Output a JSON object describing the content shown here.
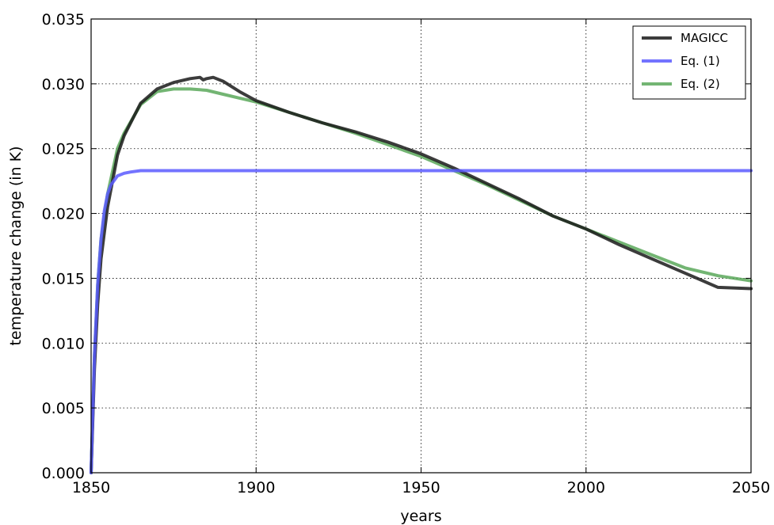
{
  "chart_data": {
    "type": "line",
    "xlabel": "years",
    "ylabel": "temperature change (in K)",
    "xlim": [
      1850,
      2050
    ],
    "ylim": [
      0,
      0.035
    ],
    "xticks": [
      1850,
      1900,
      1950,
      2000,
      2050
    ],
    "xtick_labels": [
      "1850",
      "1900",
      "1950",
      "2000",
      "2050"
    ],
    "yticks": [
      0,
      0.005,
      0.01,
      0.015,
      0.02,
      0.025,
      0.03,
      0.035
    ],
    "ytick_labels": [
      "0.000",
      "0.005",
      "0.010",
      "0.015",
      "0.020",
      "0.025",
      "0.030",
      "0.035"
    ],
    "grid": true,
    "legend_position": "top-right",
    "series": [
      {
        "name": "MAGICC",
        "color": "#1a1a1a",
        "x": [
          1850,
          1851,
          1852,
          1853,
          1855,
          1858,
          1860,
          1865,
          1870,
          1875,
          1880,
          1883,
          1884,
          1885,
          1887,
          1890,
          1895,
          1900,
          1910,
          1920,
          1930,
          1940,
          1950,
          1960,
          1970,
          1980,
          1990,
          2000,
          2010,
          2020,
          2030,
          2040,
          2050
        ],
        "y": [
          0.0,
          0.008,
          0.013,
          0.0165,
          0.0205,
          0.0245,
          0.026,
          0.0285,
          0.0296,
          0.0301,
          0.0304,
          0.0305,
          0.0303,
          0.0304,
          0.0305,
          0.0302,
          0.0294,
          0.0287,
          0.0278,
          0.027,
          0.0263,
          0.0255,
          0.0246,
          0.0235,
          0.0223,
          0.0211,
          0.0198,
          0.0188,
          0.0176,
          0.0165,
          0.0154,
          0.0143,
          0.0142
        ]
      },
      {
        "name": "Eq. (1)",
        "color": "#5b5bff",
        "x": [
          1850,
          1851,
          1852,
          1853,
          1854,
          1855,
          1856,
          1858,
          1860,
          1862,
          1865,
          1870,
          1900,
          1950,
          2000,
          2050
        ],
        "y": [
          0.0,
          0.009,
          0.0145,
          0.018,
          0.0202,
          0.0215,
          0.0222,
          0.0229,
          0.0231,
          0.0232,
          0.0233,
          0.0233,
          0.0233,
          0.0233,
          0.0233,
          0.0233
        ]
      },
      {
        "name": "Eq. (2)",
        "color": "#5aa85a",
        "x": [
          1850,
          1851,
          1852,
          1853,
          1855,
          1858,
          1860,
          1865,
          1870,
          1875,
          1880,
          1885,
          1890,
          1895,
          1900,
          1910,
          1920,
          1930,
          1940,
          1950,
          1960,
          1970,
          1980,
          1990,
          2000,
          2010,
          2020,
          2030,
          2040,
          2050
        ],
        "y": [
          0.0,
          0.009,
          0.0145,
          0.018,
          0.0215,
          0.025,
          0.0262,
          0.0284,
          0.0294,
          0.0296,
          0.0296,
          0.0295,
          0.0292,
          0.0289,
          0.0286,
          0.0278,
          0.027,
          0.0262,
          0.0253,
          0.0244,
          0.0233,
          0.0222,
          0.021,
          0.0198,
          0.0188,
          0.0178,
          0.0168,
          0.0158,
          0.0152,
          0.0148
        ]
      }
    ]
  }
}
